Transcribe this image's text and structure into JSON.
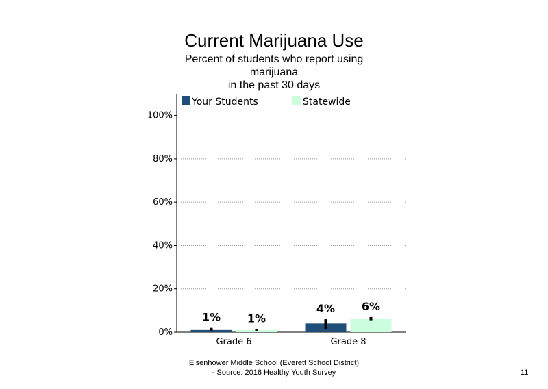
{
  "chart_data": {
    "type": "bar",
    "title": "Current Marijuana Use",
    "subtitle": [
      "Percent of students who report using",
      "marijuana",
      "in the past 30 days"
    ],
    "categories": [
      "Grade 6",
      "Grade 8"
    ],
    "series": [
      {
        "name": "Your Students",
        "values": [
          1,
          4
        ],
        "labels": [
          "1%",
          "4%"
        ],
        "error": [
          [
            0.5,
            2.0
          ],
          [
            1.5,
            6.0
          ]
        ],
        "color": "#1F4E79"
      },
      {
        "name": "Statewide",
        "values": [
          1,
          6
        ],
        "labels": [
          "1%",
          "6%"
        ],
        "error": [
          [
            0.6,
            1.4
          ],
          [
            5.5,
            7.0
          ]
        ],
        "color": "#CCFFDD"
      }
    ],
    "yticks": [
      "0%",
      "20%",
      "40%",
      "60%",
      "80%",
      "100%"
    ],
    "ylim": [
      0,
      110
    ],
    "grid": true,
    "legend": "top"
  },
  "footer": {
    "source_line1": "Eisenhower Middle School (Everett School District)",
    "source_line2": "- Source: 2016 Healthy  Youth Survey",
    "page_number": "11"
  }
}
